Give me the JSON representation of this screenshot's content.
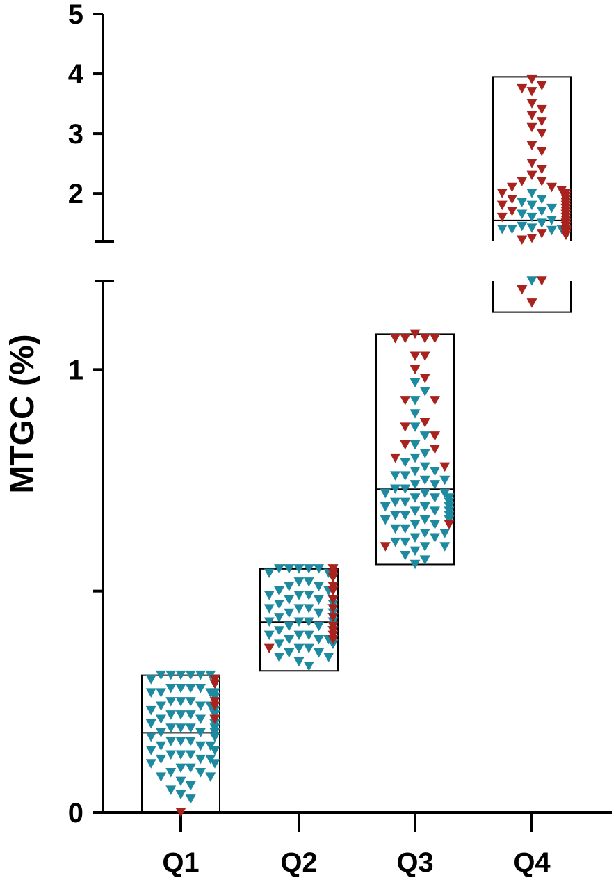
{
  "chart_data": {
    "type": "scatter",
    "subtype": "dot-plot-with-range-boxes",
    "title": "",
    "xlabel": "",
    "ylabel": "MTGC (%)",
    "y_axis": {
      "broken": true,
      "lower_segment": {
        "range": [
          0,
          1.2
        ],
        "ticks": [
          0,
          0.5,
          1
        ],
        "tick_labels": [
          "0",
          "",
          "1"
        ]
      },
      "upper_segment": {
        "range": [
          1.2,
          5
        ],
        "ticks": [
          1.2,
          2,
          3,
          4,
          5
        ],
        "tick_labels": [
          "",
          "2",
          "3",
          "4",
          "5"
        ]
      }
    },
    "grid": false,
    "legend": "none",
    "categories": [
      "Q1",
      "Q2",
      "Q3",
      "Q4"
    ],
    "marker": "triangle-down",
    "colors": {
      "teal": "#1E8AA0",
      "red": "#A8221E",
      "box": "#000000",
      "axis": "#000000"
    },
    "boxes": [
      {
        "category": "Q1",
        "min": 0.0,
        "max": 0.31,
        "median": 0.18
      },
      {
        "category": "Q2",
        "min": 0.32,
        "max": 0.55,
        "median": 0.43
      },
      {
        "category": "Q3",
        "min": 0.56,
        "max": 1.08,
        "median": 0.73
      },
      {
        "category": "Q4",
        "min": 1.13,
        "max": 3.95,
        "median": 1.55
      }
    ],
    "points": {
      "Q1": {
        "teal": [
          0.31,
          0.31,
          0.31,
          0.31,
          0.31,
          0.31,
          0.3,
          0.3,
          0.3,
          0.3,
          0.3,
          0.29,
          0.29,
          0.29,
          0.29,
          0.29,
          0.28,
          0.28,
          0.28,
          0.28,
          0.27,
          0.27,
          0.27,
          0.27,
          0.26,
          0.26,
          0.26,
          0.25,
          0.25,
          0.25,
          0.24,
          0.24,
          0.24,
          0.23,
          0.23,
          0.23,
          0.22,
          0.22,
          0.22,
          0.22,
          0.21,
          0.21,
          0.21,
          0.21,
          0.2,
          0.2,
          0.2,
          0.2,
          0.19,
          0.19,
          0.19,
          0.19,
          0.18,
          0.18,
          0.18,
          0.18,
          0.17,
          0.17,
          0.17,
          0.17,
          0.16,
          0.16,
          0.16,
          0.15,
          0.15,
          0.15,
          0.14,
          0.14,
          0.14,
          0.13,
          0.13,
          0.13,
          0.12,
          0.12,
          0.12,
          0.11,
          0.11,
          0.1,
          0.1,
          0.09,
          0.09,
          0.08,
          0.08,
          0.07,
          0.06,
          0.05,
          0.04,
          0.03
        ],
        "red": [
          0.3,
          0.3,
          0.29,
          0.25,
          0.24,
          0.21,
          0.0
        ]
      },
      "Q2": {
        "teal": [
          0.55,
          0.55,
          0.55,
          0.55,
          0.55,
          0.54,
          0.54,
          0.53,
          0.53,
          0.52,
          0.52,
          0.51,
          0.51,
          0.5,
          0.5,
          0.49,
          0.49,
          0.49,
          0.48,
          0.48,
          0.48,
          0.47,
          0.47,
          0.47,
          0.46,
          0.46,
          0.46,
          0.46,
          0.45,
          0.45,
          0.45,
          0.45,
          0.44,
          0.44,
          0.44,
          0.44,
          0.43,
          0.43,
          0.43,
          0.43,
          0.42,
          0.42,
          0.42,
          0.42,
          0.41,
          0.41,
          0.41,
          0.41,
          0.4,
          0.4,
          0.4,
          0.39,
          0.39,
          0.39,
          0.38,
          0.38,
          0.38,
          0.37,
          0.37,
          0.36,
          0.36,
          0.35,
          0.35,
          0.34,
          0.33
        ],
        "red": [
          0.55,
          0.54,
          0.54,
          0.53,
          0.51,
          0.5,
          0.48,
          0.46,
          0.44,
          0.42,
          0.41,
          0.4,
          0.39,
          0.37
        ]
      },
      "Q3": {
        "teal": [
          0.97,
          0.95,
          0.93,
          0.9,
          0.87,
          0.85,
          0.83,
          0.81,
          0.8,
          0.79,
          0.78,
          0.77,
          0.77,
          0.76,
          0.76,
          0.75,
          0.75,
          0.74,
          0.74,
          0.73,
          0.73,
          0.72,
          0.72,
          0.72,
          0.71,
          0.71,
          0.71,
          0.7,
          0.7,
          0.7,
          0.69,
          0.69,
          0.69,
          0.68,
          0.68,
          0.68,
          0.67,
          0.67,
          0.67,
          0.66,
          0.66,
          0.66,
          0.65,
          0.65,
          0.64,
          0.64,
          0.63,
          0.63,
          0.62,
          0.62,
          0.61,
          0.61,
          0.6,
          0.6,
          0.59,
          0.58,
          0.57,
          0.56
        ],
        "red": [
          1.08,
          1.07,
          1.07,
          1.07,
          1.07,
          1.03,
          1.03,
          1.0,
          0.98,
          0.93,
          0.93,
          0.88,
          0.87,
          0.85,
          0.83,
          0.82,
          0.8,
          0.78,
          0.65,
          0.65,
          0.6
        ]
      },
      "Q4": {
        "teal": [
          2.0,
          1.9,
          1.85,
          1.8,
          1.75,
          1.7,
          1.65,
          1.6,
          1.55,
          1.5,
          1.45,
          1.42,
          1.4,
          1.4,
          1.4,
          1.38,
          1.38,
          1.35,
          1.2
        ],
        "red": [
          3.9,
          3.8,
          3.75,
          3.7,
          3.5,
          3.4,
          3.3,
          3.2,
          3.1,
          3.0,
          2.8,
          2.7,
          2.5,
          2.4,
          2.3,
          2.2,
          2.2,
          2.1,
          2.1,
          2.05,
          2.0,
          2.0,
          1.95,
          1.9,
          1.9,
          1.85,
          1.85,
          1.8,
          1.8,
          1.75,
          1.75,
          1.7,
          1.7,
          1.65,
          1.65,
          1.6,
          1.6,
          1.55,
          1.5,
          1.5,
          1.45,
          1.45,
          1.4,
          1.4,
          1.38,
          1.35,
          1.35,
          1.33,
          1.3,
          1.25,
          1.22,
          1.2,
          1.18,
          1.15
        ]
      }
    }
  }
}
